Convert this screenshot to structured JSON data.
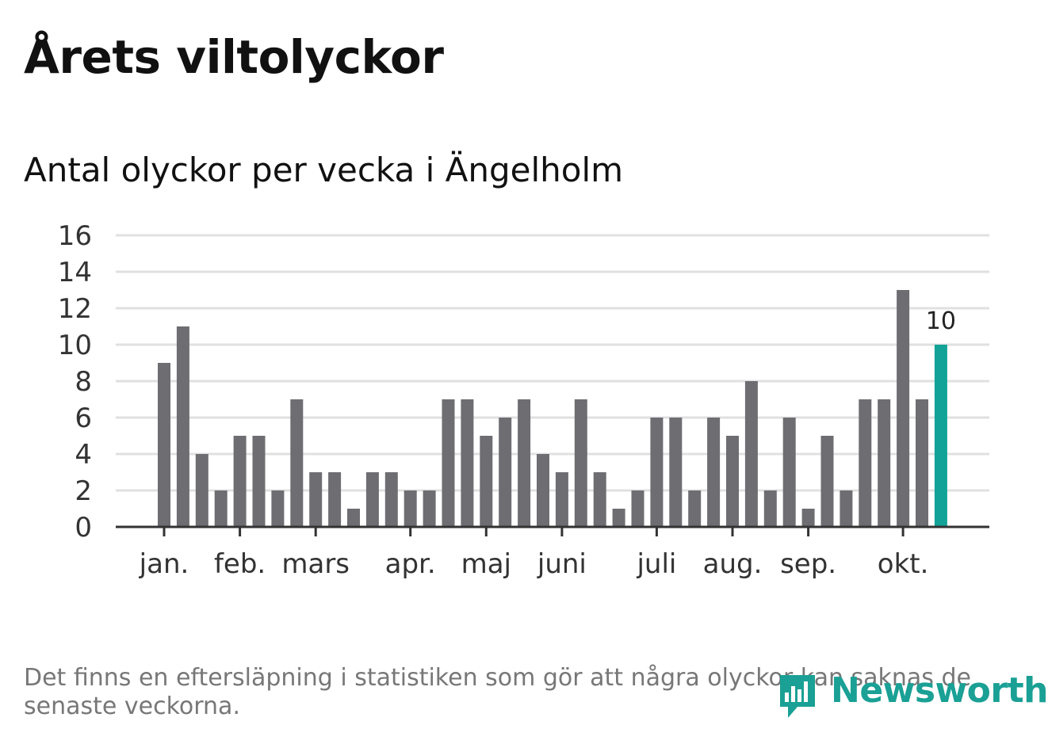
{
  "title": "Årets viltolyckor",
  "subtitle": "Antal olyckor per vecka i Ängelholm",
  "footnote": "Det finns en eftersläpning i statistiken som gör att några olyckor kan saknas de senaste veckorna.",
  "logo": {
    "text": "Newsworthy",
    "icon": "bar-chart-speech-icon"
  },
  "colors": {
    "bar": "#6e6d72",
    "highlight": "#12a297",
    "grid": "#e0e0e0",
    "axis": "#333333"
  },
  "chart_data": {
    "type": "bar",
    "title": "Antal olyckor per vecka i Ängelholm",
    "xlabel": "",
    "ylabel": "",
    "ylim": [
      0,
      16
    ],
    "yticks": [
      0,
      2,
      4,
      6,
      8,
      10,
      12,
      14,
      16
    ],
    "grid": true,
    "values": [
      9,
      11,
      4,
      2,
      5,
      5,
      2,
      7,
      3,
      3,
      1,
      3,
      3,
      2,
      2,
      7,
      7,
      5,
      6,
      7,
      4,
      3,
      7,
      3,
      1,
      2,
      6,
      6,
      2,
      6,
      5,
      8,
      2,
      6,
      1,
      5,
      2,
      7,
      7,
      13,
      7,
      10
    ],
    "highlight_index": 41,
    "highlight_label": "10",
    "month_ticks": [
      {
        "label": "jan.",
        "week": 0
      },
      {
        "label": "feb.",
        "week": 4
      },
      {
        "label": "mars",
        "week": 8
      },
      {
        "label": "apr.",
        "week": 13
      },
      {
        "label": "maj",
        "week": 17
      },
      {
        "label": "juni",
        "week": 21
      },
      {
        "label": "juli",
        "week": 26
      },
      {
        "label": "aug.",
        "week": 30
      },
      {
        "label": "sep.",
        "week": 34
      },
      {
        "label": "okt.",
        "week": 39
      }
    ]
  }
}
